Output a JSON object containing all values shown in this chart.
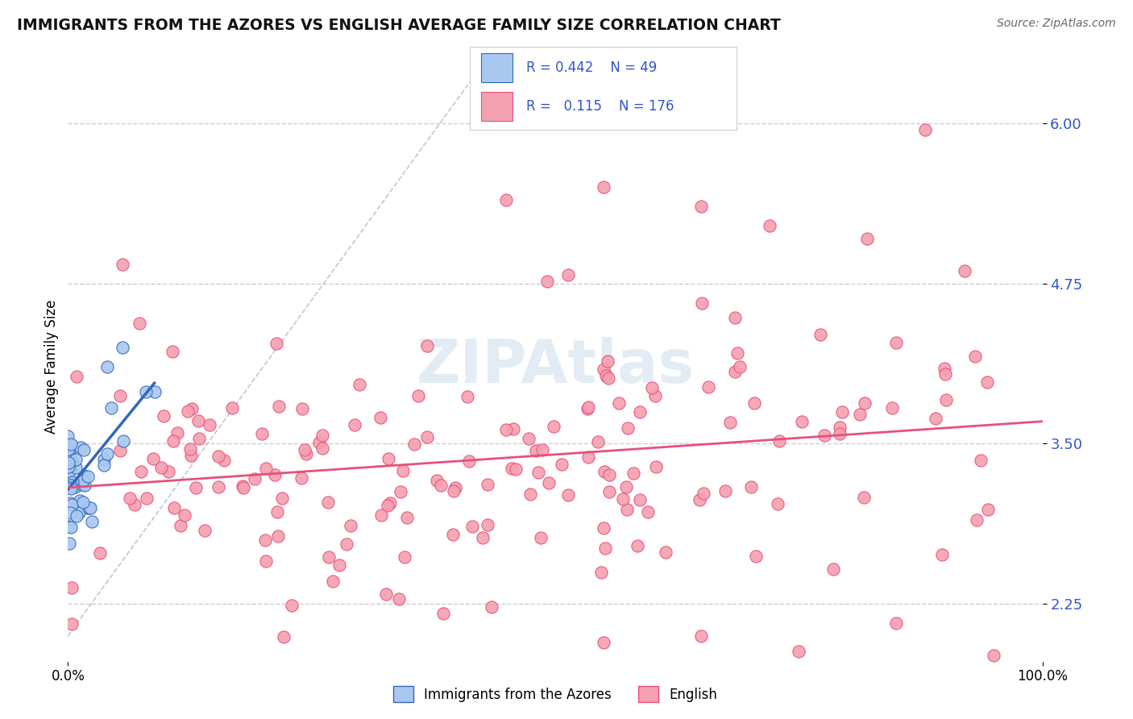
{
  "title": "IMMIGRANTS FROM THE AZORES VS ENGLISH AVERAGE FAMILY SIZE CORRELATION CHART",
  "source": "Source: ZipAtlas.com",
  "ylabel": "Average Family Size",
  "xlim": [
    0,
    1.0
  ],
  "ylim": [
    1.8,
    6.4
  ],
  "yticks": [
    2.25,
    3.5,
    4.75,
    6.0
  ],
  "xticks": [
    0.0,
    1.0
  ],
  "xticklabels": [
    "0.0%",
    "100.0%"
  ],
  "legend_labels": [
    "Immigrants from the Azores",
    "English"
  ],
  "azores_R": 0.442,
  "azores_N": 49,
  "english_R": 0.115,
  "english_N": 176,
  "azores_color": "#a8c8f0",
  "english_color": "#f4a0b0",
  "azores_line_color": "#3366bb",
  "english_line_color": "#e8507a",
  "background_color": "#ffffff",
  "grid_color": "#cccccc"
}
